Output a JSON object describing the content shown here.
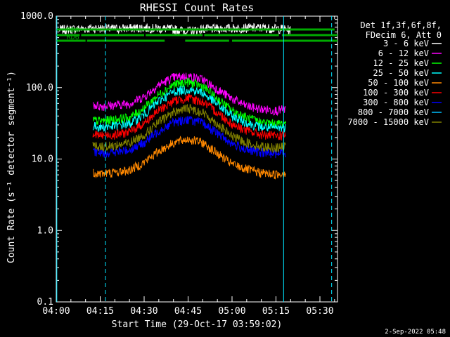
{
  "chart_data": {
    "type": "line",
    "title": "RHESSI Count Rates",
    "xlabel": "Start Time (29-Oct-17 03:59:02)",
    "ylabel": "Count Rate (s⁻¹ detector segment⁻¹)",
    "x_ticks": [
      "04:00",
      "04:15",
      "04:30",
      "04:45",
      "05:00",
      "05:15",
      "05:30"
    ],
    "x_tick_minutes": [
      0,
      15,
      30,
      45,
      60,
      75,
      90
    ],
    "xlim_minutes": [
      0,
      96
    ],
    "y_scale": "log",
    "ylim": [
      0.1,
      1000
    ],
    "y_ticks": [
      "0.1",
      "1.0",
      "10.0",
      "100.0",
      "1000.0"
    ],
    "y_tick_values": [
      0.1,
      1,
      10,
      100,
      1000
    ],
    "legend_header": [
      "Det 1f,3f,6f,8f,",
      "FDecim 6, Att 0"
    ],
    "legend_position": "right",
    "series": [
      {
        "name": "3 - 6 keV",
        "color": "#ffffff",
        "x": [
          1,
          5,
          10,
          12,
          20,
          30,
          40,
          45,
          50,
          60,
          70,
          78,
          80
        ],
        "values": [
          650,
          660,
          670,
          680,
          670,
          690,
          660,
          620,
          660,
          680,
          690,
          660,
          640
        ]
      },
      {
        "name": "6 - 12 keV",
        "color": "#ff00ff",
        "x": [
          12.5,
          15,
          20,
          25,
          30,
          35,
          40,
          45,
          50,
          55,
          60,
          65,
          70,
          75,
          78.5
        ],
        "values": [
          58,
          55,
          57,
          60,
          75,
          110,
          140,
          145,
          130,
          95,
          70,
          55,
          50,
          48,
          50
        ]
      },
      {
        "name": "12 - 25 keV",
        "color": "#00ff00",
        "x": [
          12.5,
          15,
          20,
          25,
          30,
          35,
          40,
          45,
          50,
          55,
          60,
          65,
          70,
          75,
          78.5
        ],
        "values": [
          35,
          34,
          36,
          38,
          52,
          80,
          110,
          120,
          105,
          70,
          48,
          38,
          33,
          31,
          32
        ]
      },
      {
        "name": "25 - 50 keV",
        "color": "#00ffff",
        "x": [
          12.5,
          15,
          20,
          25,
          30,
          35,
          40,
          45,
          50,
          55,
          60,
          65,
          70,
          75,
          78.5
        ],
        "values": [
          29,
          28,
          29,
          31,
          42,
          65,
          88,
          95,
          85,
          58,
          40,
          32,
          28,
          27,
          28
        ]
      },
      {
        "name": "50 - 100 keV",
        "color": "#ff8800",
        "x": [
          12.5,
          15,
          20,
          25,
          30,
          35,
          40,
          45,
          50,
          55,
          60,
          65,
          70,
          75,
          78.5
        ],
        "values": [
          6.5,
          6.3,
          6.5,
          7,
          9,
          13,
          17,
          19,
          17,
          12,
          8.5,
          7.2,
          6.4,
          6.1,
          6.5
        ]
      },
      {
        "name": "100 - 300 keV",
        "color": "#ff0000",
        "x": [
          12.5,
          15,
          20,
          25,
          30,
          35,
          40,
          45,
          50,
          55,
          60,
          65,
          70,
          75,
          78.5
        ],
        "values": [
          22,
          21.5,
          22,
          24,
          32,
          48,
          65,
          72,
          63,
          45,
          31,
          25,
          22,
          21,
          22
        ]
      },
      {
        "name": "300 - 800 keV",
        "color": "#0000ff",
        "x": [
          12.5,
          15,
          20,
          25,
          30,
          35,
          40,
          45,
          50,
          55,
          60,
          65,
          70,
          75,
          78.5
        ],
        "values": [
          12.5,
          12.2,
          12.5,
          13.5,
          17,
          25,
          33,
          36,
          32,
          23,
          16.5,
          13.5,
          12.3,
          12,
          12.5
        ]
      },
      {
        "name": "800 - 7000 keV",
        "color": "#00bfff",
        "x": [],
        "values": []
      },
      {
        "name": "7000 - 15000 keV",
        "color": "#808000",
        "x": [
          12.5,
          15,
          20,
          25,
          30,
          35,
          40,
          45,
          50,
          55,
          60,
          65,
          70,
          75,
          78.5
        ],
        "values": [
          15.5,
          15,
          15.5,
          17,
          22,
          33,
          46,
          52,
          45,
          31,
          21,
          17,
          15,
          14.5,
          15
        ]
      }
    ],
    "flags": [
      {
        "label": "RD0",
        "y_offset": 0,
        "segments": [
          [
            0,
            95
          ]
        ]
      },
      {
        "label": "RD6",
        "y_offset": 1,
        "segments": [
          [
            0,
            8
          ],
          [
            8.5,
            30
          ],
          [
            30.5,
            50
          ],
          [
            50.5,
            76
          ],
          [
            77,
            96
          ]
        ]
      },
      {
        "label": "",
        "y_offset": 2,
        "segments": [
          [
            0,
            10
          ],
          [
            10.5,
            37
          ],
          [
            44,
            59
          ],
          [
            60,
            96
          ]
        ]
      }
    ],
    "vertical_lines": [
      {
        "x": 0.2,
        "style": "solid"
      },
      {
        "x": 16.8,
        "style": "dashed"
      },
      {
        "x": 77.6,
        "style": "solid"
      },
      {
        "x": 94.0,
        "style": "dashed"
      }
    ]
  },
  "timestamp": "2-Sep-2022 05:48"
}
